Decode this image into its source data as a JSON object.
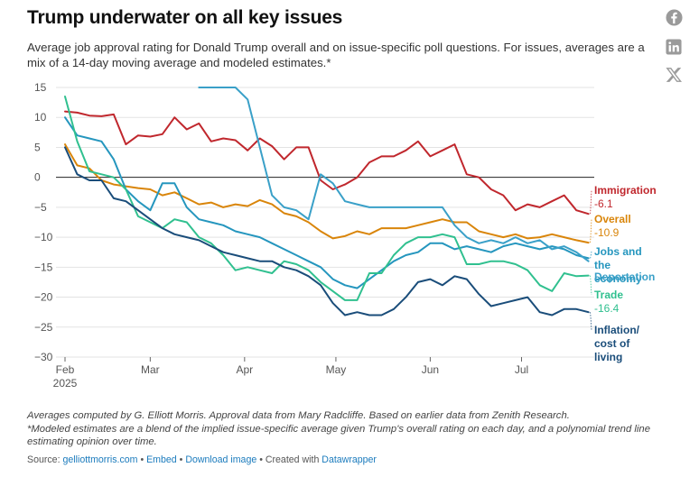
{
  "header": {
    "title": "Trump underwater on all key issues",
    "subtitle": "Average job approval rating for Donald Trump overall and on issue-specific poll questions. For issues, averages are a mix of a 14-day moving average and modeled estimates.*"
  },
  "share": {
    "facebook": "facebook-icon",
    "linkedin": "linkedin-icon",
    "x": "x-icon"
  },
  "footer": {
    "note1": "Averages computed by G. Elliott Morris. Approval data from Mary Radcliffe. Based on earlier data from Zenith Research.",
    "note2": "*Modeled estimates are a blend of the implied issue-specific average given Trump's overall rating on each day, and a polynomial trend line estimating opinion over time.",
    "source_label": "Source:",
    "source_link": "gelliottmorris.com",
    "sep": "•",
    "embed": "Embed",
    "download": "Download image",
    "created": "Created with",
    "datawrapper": "Datawrapper"
  },
  "chart_data": {
    "type": "line",
    "title": "Trump underwater on all key issues",
    "xlabel": "",
    "ylabel": "",
    "x": [
      0,
      4,
      8,
      12,
      16,
      20,
      24,
      28,
      32,
      36,
      40,
      44,
      48,
      52,
      56,
      60,
      64,
      68,
      72,
      76,
      80,
      84,
      88,
      92,
      96,
      100,
      104,
      108,
      112,
      116,
      120,
      124,
      128,
      132,
      136,
      140,
      144,
      148,
      152,
      156,
      160,
      164,
      168,
      172
    ],
    "x_unit": "days since Feb 1, 2025",
    "ylim": [
      -30,
      15
    ],
    "yticks": [
      15,
      10,
      5,
      0,
      -5,
      -10,
      -15,
      -20,
      -25,
      -30
    ],
    "xticks": [
      {
        "day": 0,
        "label": "Feb",
        "sub": "2025"
      },
      {
        "day": 28,
        "label": "Mar",
        "sub": ""
      },
      {
        "day": 59,
        "label": "Apr",
        "sub": ""
      },
      {
        "day": 89,
        "label": "May",
        "sub": ""
      },
      {
        "day": 120,
        "label": "Jun",
        "sub": ""
      },
      {
        "day": 150,
        "label": "Jul",
        "sub": ""
      }
    ],
    "series": [
      {
        "name": "Immigration",
        "label": "Immigration",
        "value_label": "-6.1",
        "color": "#c0272d",
        "values": [
          11,
          10.8,
          10.3,
          10.2,
          10.5,
          5.5,
          7,
          6.8,
          7.2,
          10,
          8,
          9,
          6,
          6.5,
          6.2,
          4.5,
          6.5,
          5.2,
          3,
          5,
          5,
          -0.5,
          -2,
          -1.2,
          0,
          2.5,
          3.5,
          3.5,
          4.5,
          6,
          3.5,
          4.5,
          5.5,
          0.5,
          0,
          -2,
          -3,
          -5.5,
          -4.5,
          -5,
          -4,
          -3,
          -5.5,
          -6.1
        ]
      },
      {
        "name": "Overall",
        "label": "Overall",
        "value_label": "-10.9",
        "color": "#d9850a",
        "values": [
          5.5,
          2,
          1.5,
          -0.5,
          -1.2,
          -1.5,
          -1.8,
          -2,
          -3,
          -2.5,
          -3.5,
          -4.5,
          -4.2,
          -5,
          -4.5,
          -4.8,
          -3.8,
          -4.5,
          -6,
          -6.5,
          -7.5,
          -9,
          -10.2,
          -9.8,
          -9,
          -9.5,
          -8.5,
          -8.5,
          -8.5,
          -8,
          -7.5,
          -7,
          -7.5,
          -7.5,
          -9,
          -9.5,
          -10,
          -9.5,
          -10.2,
          -10,
          -9.5,
          -10,
          -10.5,
          -10.9
        ]
      },
      {
        "name": "Jobs and the economy",
        "label1": "Jobs and",
        "label2": "the",
        "label3": "economy",
        "value_label": "",
        "color": "#2596be",
        "values": [
          10,
          7,
          6.5,
          6,
          3,
          -2,
          -4,
          -5.5,
          -1,
          -1,
          -5,
          -7,
          -7.5,
          -8,
          -9,
          -9.5,
          -10,
          -11,
          -12,
          -13,
          -14,
          -15,
          -17,
          -18,
          -18.5,
          -17,
          -15.5,
          -14,
          -13,
          -12.5,
          -11,
          -11,
          -12,
          -11.5,
          -12,
          -12.5,
          -11.5,
          -11,
          -11.5,
          -12,
          -11.5,
          -12,
          -13,
          -13.5
        ]
      },
      {
        "name": "Deportation",
        "label": "Deportation",
        "value_label": "",
        "color": "#3aa0c8",
        "values": [
          null,
          null,
          null,
          null,
          null,
          null,
          null,
          null,
          null,
          null,
          null,
          15,
          15,
          15,
          15,
          13,
          5,
          -3,
          -5,
          -5.5,
          -7,
          0.5,
          -1,
          -4,
          -4.5,
          -5,
          -5,
          -5,
          -5,
          -5,
          -5,
          -5,
          -8,
          -10,
          -11,
          -10.5,
          -11,
          -10,
          -11,
          -10.5,
          -12,
          -11.5,
          -12.5,
          -14
        ]
      },
      {
        "name": "Trade",
        "label": "Trade",
        "value_label": "-16.4",
        "color": "#30c08f",
        "values": [
          13.5,
          6,
          1,
          0.5,
          0,
          -2,
          -6.5,
          -7.5,
          -8.5,
          -7,
          -7.5,
          -10,
          -11,
          -13,
          -15.5,
          -15,
          -15.5,
          -16,
          -14,
          -14.5,
          -15.5,
          -17.5,
          -19,
          -20.5,
          -20.5,
          -16,
          -16,
          -13,
          -11,
          -10,
          -10,
          -9.5,
          -10,
          -14.5,
          -14.5,
          -14,
          -14,
          -14.5,
          -15.5,
          -18,
          -19,
          -16,
          -16.5,
          -16.4
        ]
      },
      {
        "name": "Inflation/cost of living",
        "label1": "Inflation/",
        "label2": "cost of",
        "label3": "living",
        "value_label": "",
        "color": "#1a4d7a",
        "values": [
          5,
          0.5,
          -0.5,
          -0.5,
          -3.5,
          -4,
          -5.5,
          -7,
          -8.5,
          -9.5,
          -10,
          -10.5,
          -11.5,
          -12.5,
          -13,
          -13.5,
          -14,
          -14,
          -15,
          -15.5,
          -16.5,
          -18,
          -21,
          -23,
          -22.5,
          -23,
          -23,
          -22,
          -20,
          -17.5,
          -17,
          -18,
          -16.5,
          -17,
          -19.5,
          -21.5,
          -21,
          -20.5,
          -20,
          -22.5,
          -23,
          -22,
          -22,
          -22.5
        ]
      }
    ]
  }
}
